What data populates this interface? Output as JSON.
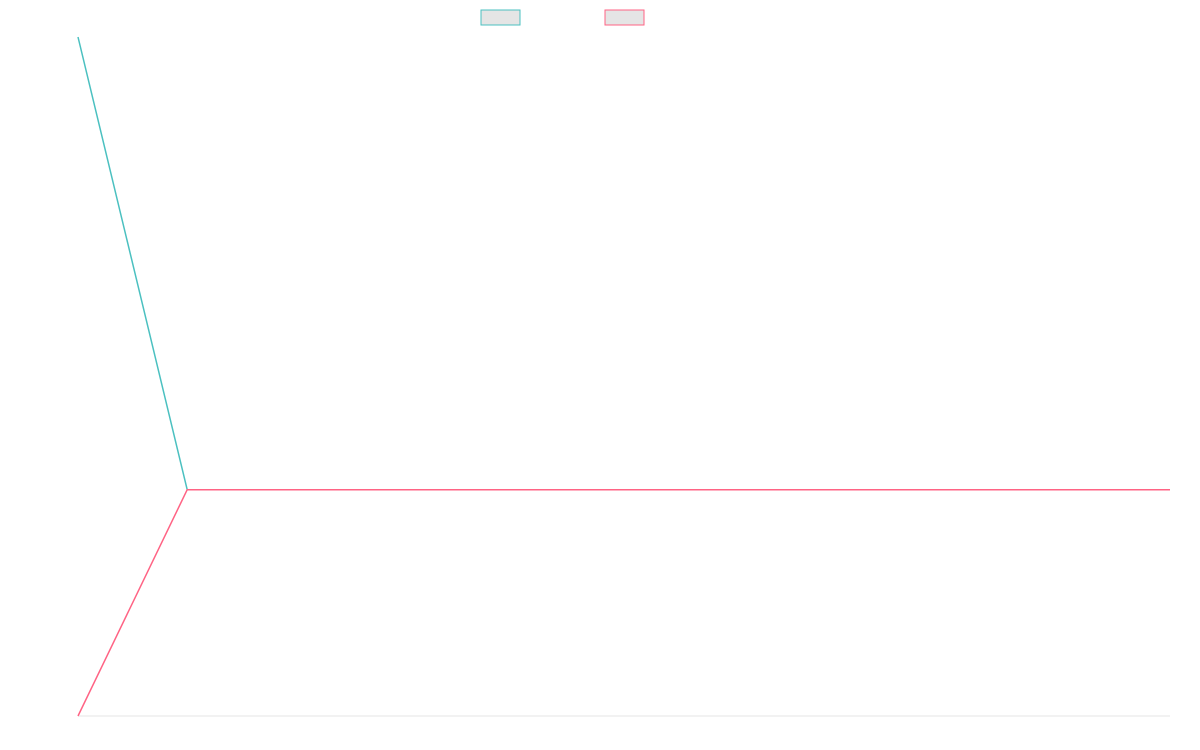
{
  "chart_data": {
    "type": "line",
    "title": "",
    "xlabel": "",
    "ylabel": "",
    "grid": false,
    "legend_placement": "top-center",
    "x": [
      0,
      0.1,
      0.2,
      0.3,
      0.4,
      0.5,
      0.6,
      0.7,
      0.8,
      0.9,
      1
    ],
    "ylim": [
      -1,
      2
    ],
    "xlim": [
      0,
      1
    ],
    "series": [
      {
        "color": "#4bc0c0",
        "fill": "#e5e5e5",
        "values": [
          2,
          0,
          0,
          0,
          0,
          0,
          0,
          0,
          0,
          0,
          0
        ]
      },
      {
        "color": "#ff6384",
        "fill": "#e5e5e5",
        "values": [
          -1,
          0,
          0,
          0,
          0,
          0,
          0,
          0,
          0,
          0,
          0
        ]
      }
    ]
  }
}
